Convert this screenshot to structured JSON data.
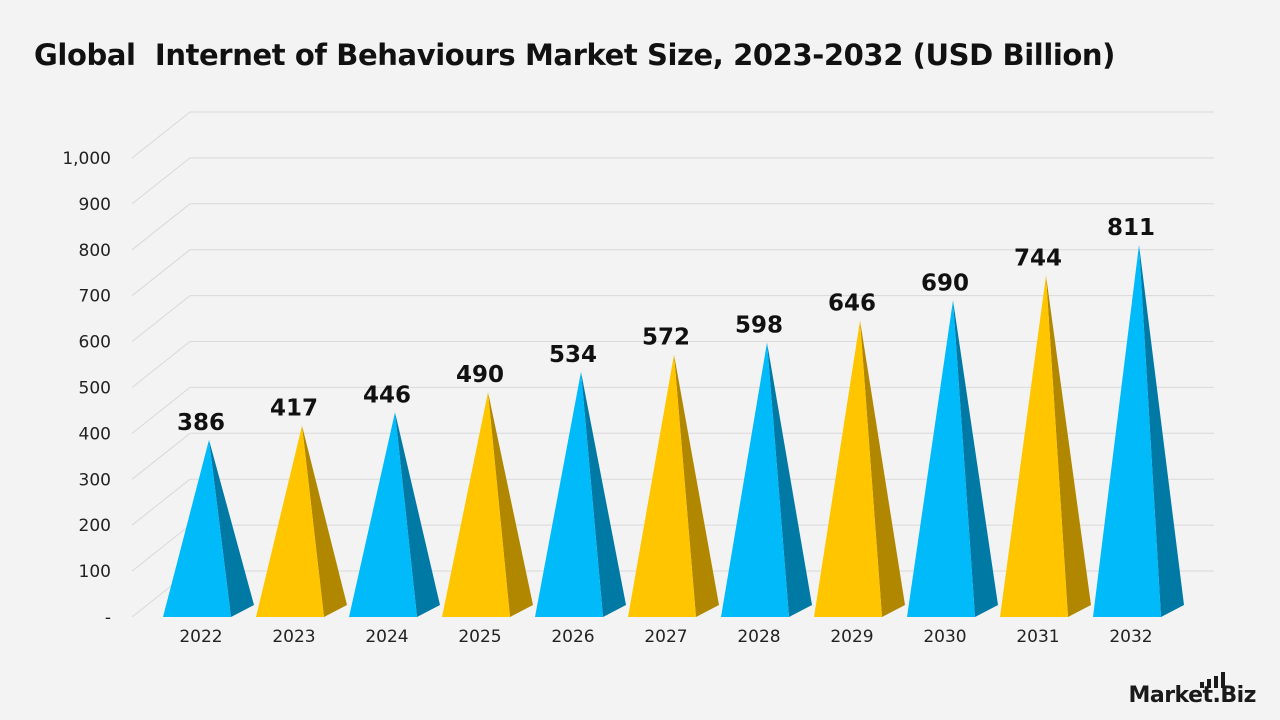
{
  "title": "Global  Internet of Behaviours Market Size, 2023-2032 (USD Billion)",
  "brand": {
    "name": "Market.Biz"
  },
  "colors": {
    "background": "#f3f3f3",
    "blue": "#00bafa",
    "blue_dark": "#0079a5",
    "yellow": "#ffc600",
    "yellow_dark": "#b18700",
    "grid": "#d9d9d9",
    "text": "#111111"
  },
  "chart_data": {
    "type": "bar",
    "bar_shape": "3d-pyramid",
    "categories": [
      "2022",
      "2023",
      "2024",
      "2025",
      "2026",
      "2027",
      "2028",
      "2029",
      "2030",
      "2031",
      "2032"
    ],
    "values": [
      386,
      417,
      446,
      490,
      534,
      572,
      598,
      646,
      690,
      744,
      811
    ],
    "data_labels": [
      "386",
      "417",
      "446",
      "490",
      "534",
      "572",
      "598",
      "646",
      "690",
      "744",
      "811"
    ],
    "bar_colors": [
      "blue",
      "yellow",
      "blue",
      "yellow",
      "blue",
      "yellow",
      "blue",
      "yellow",
      "blue",
      "yellow",
      "blue"
    ],
    "ylim": [
      0,
      1000
    ],
    "y_ticks": [
      0,
      100,
      200,
      300,
      400,
      500,
      600,
      700,
      800,
      900,
      1000
    ],
    "y_tick_labels": [
      "-",
      "100",
      "200",
      "300",
      "400",
      "500",
      "600",
      "700",
      "800",
      "900",
      "1,000"
    ],
    "xlabel": "",
    "ylabel": "",
    "grid": true,
    "legend": "none"
  }
}
